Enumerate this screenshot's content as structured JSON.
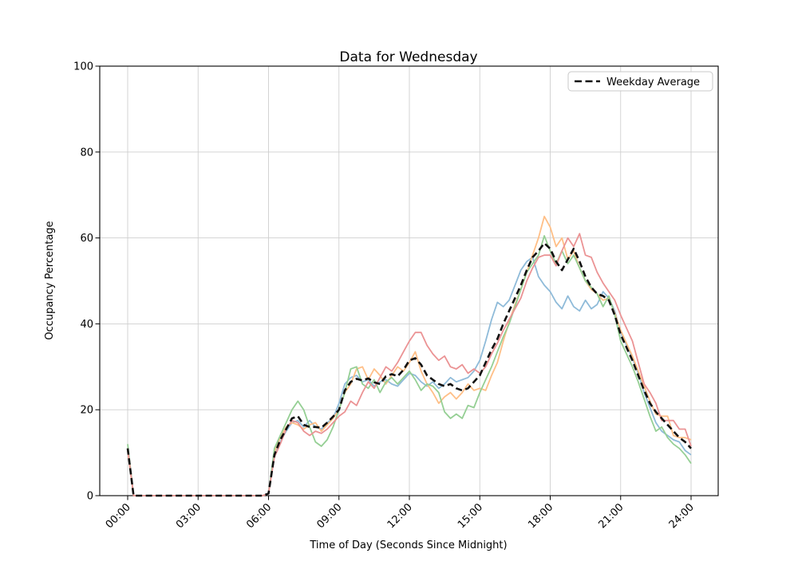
{
  "chart_data": {
    "type": "line",
    "title": "Data for Wednesday",
    "xlabel": "Time of Day (Seconds Since Midnight)",
    "ylabel": "Occupancy Percentage",
    "x_ticks": [
      "00:00",
      "03:00",
      "06:00",
      "09:00",
      "12:00",
      "15:00",
      "18:00",
      "21:00",
      "24:00"
    ],
    "x_tick_hours": [
      0,
      3,
      6,
      9,
      12,
      15,
      18,
      21,
      24
    ],
    "y_ticks": [
      0,
      20,
      40,
      60,
      80,
      100
    ],
    "xlim_hours": [
      0,
      24
    ],
    "ylim": [
      0,
      100
    ],
    "grid": true,
    "grid_color": "#cfcfcf",
    "x_start_hour": 0,
    "x_step_hours": 0.25,
    "legend": {
      "position": "upper right",
      "entries": [
        {
          "label": "Weekday Average",
          "style": "dashed",
          "color": "#111111"
        }
      ]
    },
    "series": [
      {
        "name": "weekday-series-1",
        "color": "#8fbbd9",
        "dashed": false,
        "values": [
          11,
          0,
          0,
          0,
          0,
          0,
          0,
          0,
          0,
          0,
          0,
          0,
          0,
          0,
          0,
          0,
          0,
          0,
          0,
          0,
          0,
          0,
          0,
          0,
          0.5,
          9.5,
          12.5,
          15,
          17,
          17.5,
          16,
          17.5,
          16,
          15.5,
          17,
          18,
          21.5,
          26,
          27.5,
          28,
          26.5,
          27,
          25.5,
          26.5,
          27,
          26,
          25.5,
          27,
          28.5,
          28,
          26.5,
          25.5,
          26.5,
          25,
          26,
          27.5,
          26.5,
          27,
          27.5,
          29,
          31.5,
          36,
          41,
          45,
          44,
          45.5,
          49,
          52.5,
          54.5,
          55.5,
          51,
          49,
          47.5,
          45,
          43.5,
          46.5,
          44,
          43,
          45.5,
          43.5,
          44.5,
          47.5,
          46,
          43,
          38,
          35,
          32,
          28.5,
          24,
          20.5,
          17,
          15,
          14,
          13,
          12.5,
          10.5,
          9.5
        ]
      },
      {
        "name": "weekday-series-2",
        "color": "#ffbf87",
        "dashed": false,
        "values": [
          10.5,
          0,
          0,
          0,
          0,
          0,
          0,
          0,
          0,
          0,
          0,
          0,
          0,
          0,
          0,
          0,
          0,
          0,
          0,
          0,
          0,
          0,
          0,
          0,
          0.5,
          10,
          13.5,
          16,
          17,
          16.5,
          15.5,
          16.5,
          17,
          15,
          16.5,
          18,
          20,
          24,
          26,
          29.5,
          30,
          27,
          29.5,
          28,
          26,
          28,
          30,
          29,
          31,
          33.5,
          29,
          26,
          24,
          21.5,
          23,
          24,
          22.5,
          24,
          26,
          24.5,
          25,
          24.5,
          28,
          31,
          36,
          40.5,
          44.5,
          48,
          52,
          56,
          60,
          65,
          62.5,
          58,
          60,
          55,
          57,
          53,
          50,
          48,
          47,
          45.5,
          46,
          42.5,
          38.5,
          35.5,
          32.5,
          29,
          25.5,
          22,
          19,
          18.5,
          18.5,
          14,
          13.5,
          13.5,
          13
        ]
      },
      {
        "name": "weekday-series-3",
        "color": "#95cf94",
        "dashed": false,
        "values": [
          12,
          0,
          0,
          0,
          0,
          0,
          0,
          0,
          0,
          0,
          0,
          0,
          0,
          0,
          0,
          0,
          0,
          0,
          0,
          0,
          0,
          0,
          0,
          0,
          0.5,
          11,
          14,
          17,
          20,
          22,
          20,
          16,
          12.5,
          11.5,
          13,
          16,
          20,
          24,
          29.5,
          30,
          26,
          25,
          27,
          24,
          26.5,
          27.5,
          26,
          27.5,
          29,
          27,
          24.5,
          26,
          25.5,
          24,
          19.5,
          18,
          19,
          18,
          21,
          20.5,
          24,
          27,
          30,
          33.5,
          37,
          40,
          44,
          48,
          52,
          54,
          56,
          60.5,
          57,
          54,
          57,
          54,
          56,
          53,
          50,
          48.5,
          47,
          44,
          46.5,
          42,
          36,
          33,
          30,
          26.5,
          22.5,
          18.5,
          15,
          16,
          13.5,
          12,
          11,
          9.5,
          7.5
        ]
      },
      {
        "name": "weekday-series-4",
        "color": "#eb9394",
        "dashed": false,
        "values": [
          11,
          0,
          0,
          0,
          0,
          0,
          0,
          0,
          0,
          0,
          0,
          0,
          0,
          0,
          0,
          0,
          0,
          0,
          0,
          0,
          0,
          0,
          0,
          0,
          0.5,
          9,
          12,
          15.5,
          17.5,
          17,
          15,
          14,
          15,
          14.5,
          15.5,
          17,
          18.5,
          19.5,
          22,
          21,
          24,
          26.5,
          25,
          27.5,
          30,
          29,
          31,
          33.5,
          36,
          38,
          38,
          35,
          33,
          31.5,
          32.5,
          30,
          29.5,
          30.5,
          28.5,
          29.5,
          28.5,
          30,
          33,
          35.5,
          38.5,
          41,
          43.5,
          46,
          50,
          53,
          55.5,
          56,
          56,
          53.5,
          57,
          60,
          58,
          61,
          56,
          55.5,
          52,
          49.5,
          47.5,
          45.5,
          42,
          39,
          36,
          31,
          26,
          24,
          21.5,
          17.5,
          17.5,
          17.5,
          15.5,
          15.5,
          11.5
        ]
      },
      {
        "name": "Weekday Average",
        "color": "#111111",
        "dashed": true,
        "values": [
          11,
          0,
          0,
          0,
          0,
          0,
          0,
          0,
          0,
          0,
          0,
          0,
          0,
          0,
          0,
          0,
          0,
          0,
          0,
          0,
          0,
          0,
          0,
          0,
          0.5,
          9.5,
          13,
          15.5,
          18,
          18.5,
          16.5,
          16,
          16,
          15.8,
          17,
          18.4,
          20,
          24.5,
          26.5,
          27.2,
          26.8,
          27.3,
          26.4,
          26,
          27.8,
          28.3,
          27.8,
          29.3,
          31.5,
          32,
          30.5,
          28,
          27,
          26,
          25.5,
          26,
          25,
          24.5,
          25,
          26.5,
          28,
          31,
          34,
          36.5,
          40,
          43,
          46,
          49,
          52.5,
          55.5,
          57,
          58.8,
          57.5,
          54.5,
          52.5,
          55,
          57.5,
          54.5,
          51,
          48.5,
          47,
          46.5,
          45.5,
          42,
          37.5,
          34.5,
          31.5,
          28,
          24.5,
          21.5,
          19.5,
          18,
          16.5,
          15,
          13.5,
          12.5,
          11
        ]
      }
    ]
  }
}
